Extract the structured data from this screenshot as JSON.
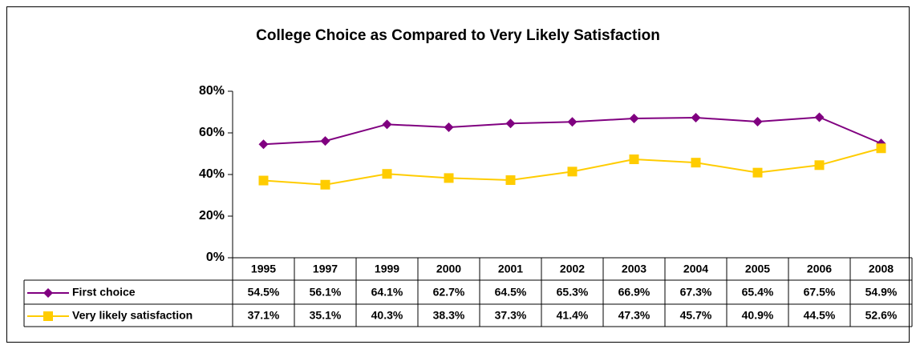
{
  "chart_data": {
    "type": "line",
    "title": "College Choice as Compared to Very Likely Satisfaction",
    "categories": [
      "1995",
      "1997",
      "1999",
      "2000",
      "2001",
      "2002",
      "2003",
      "2004",
      "2005",
      "2006",
      "2008"
    ],
    "series": [
      {
        "name": "First choice",
        "color": "#800080",
        "marker": "diamond",
        "values": [
          54.5,
          56.1,
          64.1,
          62.7,
          64.5,
          65.3,
          66.9,
          67.3,
          65.4,
          67.5,
          54.9
        ],
        "value_labels": [
          "54.5%",
          "56.1%",
          "64.1%",
          "62.7%",
          "64.5%",
          "65.3%",
          "66.9%",
          "67.3%",
          "65.4%",
          "67.5%",
          "54.9%"
        ]
      },
      {
        "name": "Very likely satisfaction",
        "color": "#FFCC00",
        "marker": "square",
        "values": [
          37.1,
          35.1,
          40.3,
          38.3,
          37.3,
          41.4,
          47.3,
          45.7,
          40.9,
          44.5,
          52.6
        ],
        "value_labels": [
          "37.1%",
          "35.1%",
          "40.3%",
          "38.3%",
          "37.3%",
          "41.4%",
          "47.3%",
          "45.7%",
          "40.9%",
          "44.5%",
          "52.6%"
        ]
      }
    ],
    "ylim": [
      0,
      80
    ],
    "yticks": [
      {
        "value": 0,
        "label": "0%"
      },
      {
        "value": 20,
        "label": "20%"
      },
      {
        "value": 40,
        "label": "40%"
      },
      {
        "value": 60,
        "label": "60%"
      },
      {
        "value": 80,
        "label": "80%"
      }
    ],
    "grid": false
  }
}
